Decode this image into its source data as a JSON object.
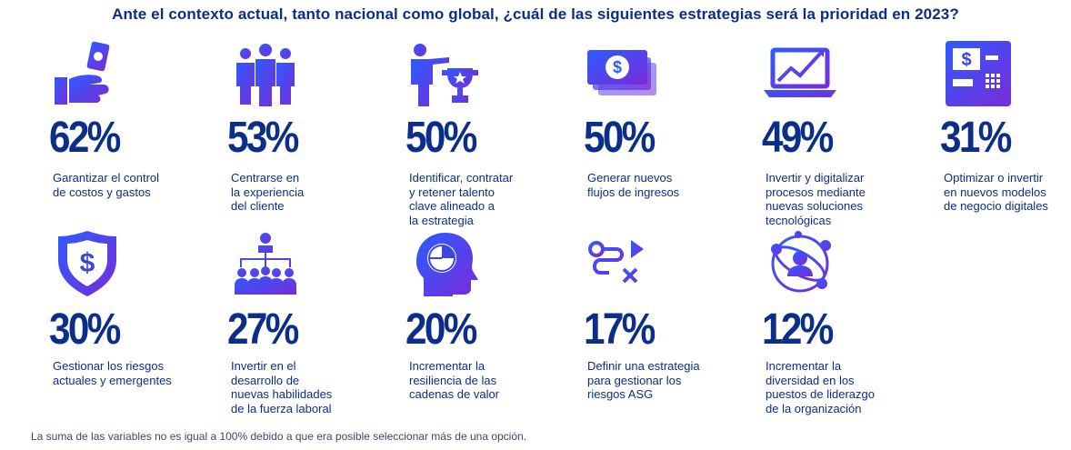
{
  "colors": {
    "navy": "#0a2e8a",
    "grad_start": "#2b5cff",
    "grad_end": "#7a2bd9"
  },
  "chart_data": {
    "type": "icon-stat-grid",
    "title": "Ante el contexto actual, tanto nacional como global, ¿cuál de las siguientes estrategias será la prioridad en 2023?",
    "footnote": "La suma de las variables no es igual a 100% debido a que era posible seleccionar más de una opción.",
    "unit": "%",
    "items": [
      {
        "value": 62,
        "display": "62%",
        "label": "Garantizar el control\nde costos y gastos",
        "icon": "hand-money-icon"
      },
      {
        "value": 53,
        "display": "53%",
        "label": "Centrarse en\nla experiencia\ndel cliente",
        "icon": "people-group-icon"
      },
      {
        "value": 50,
        "display": "50%",
        "label": "Identificar, contratar\ny retener talento\nclave alineado a\nla estrategia",
        "icon": "person-trophy-icon"
      },
      {
        "value": 50,
        "display": "50%",
        "label": "Generar nuevos\nflujos de ingresos",
        "icon": "banknotes-icon"
      },
      {
        "value": 49,
        "display": "49%",
        "label": "Invertir y digitalizar\nprocesos mediante\nnuevas soluciones\ntecnológicas",
        "icon": "laptop-growth-icon"
      },
      {
        "value": 31,
        "display": "31%",
        "label": "Optimizar o invertir\nen nuevos modelos\nde negocio digitales",
        "icon": "atm-icon"
      },
      {
        "value": 30,
        "display": "30%",
        "label": "Gestionar los riesgos\nactuales y emergentes",
        "icon": "shield-dollar-icon"
      },
      {
        "value": 27,
        "display": "27%",
        "label": "Invertir en el\ndesarrollo de\nnuevas habilidades\nde la fuerza laboral",
        "icon": "org-chart-icon"
      },
      {
        "value": 20,
        "display": "20%",
        "label": "Incrementar la\nresiliencia de las\ncadenas de valor",
        "icon": "head-piechart-icon"
      },
      {
        "value": 17,
        "display": "17%",
        "label": "Definir una estrategia\npara gestionar los\nriesgos ASG",
        "icon": "route-strategy-icon"
      },
      {
        "value": 12,
        "display": "12%",
        "label": "Incrementar la\ndiversidad en los\npuestos de liderazgo\nde la organización",
        "icon": "diversity-orbit-icon"
      }
    ]
  }
}
